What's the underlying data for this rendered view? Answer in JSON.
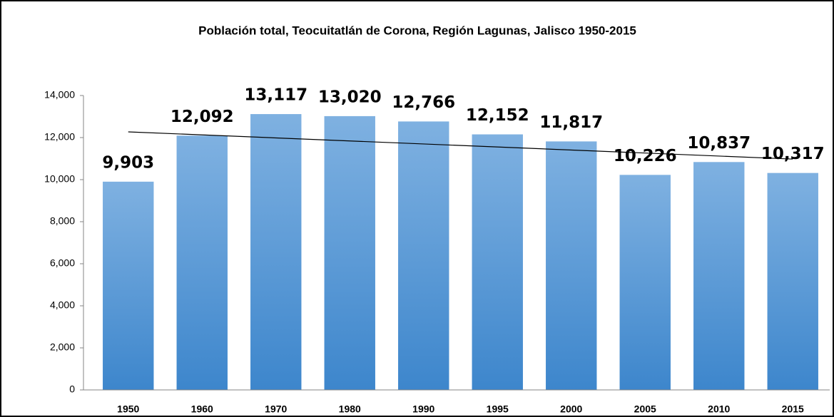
{
  "chart_data": {
    "type": "bar",
    "title": "Población total, Teocuitatlán de Corona, Región Lagunas, Jalisco 1950-2015",
    "categories": [
      "1950",
      "1960",
      "1970",
      "1980",
      "1990",
      "1995",
      "2000",
      "2005",
      "2010",
      "2015"
    ],
    "values": [
      9903,
      12092,
      13117,
      13020,
      12766,
      12152,
      11817,
      10226,
      10837,
      10317
    ],
    "value_labels": [
      "9,903",
      "12,092",
      "13,117",
      "13,020",
      "12,766",
      "12,152",
      "11,817",
      "10,226",
      "10,837",
      "10,317"
    ],
    "color": "#5b9bd5",
    "trendline": "linear",
    "ylim": [
      0,
      14000
    ],
    "yticks": [
      0,
      {
        "value": 2000,
        "label": "2,000"
      },
      {
        "value": 4000,
        "label": "4,000"
      },
      {
        "value": 6000,
        "label": "6,000"
      },
      {
        "value": 8000,
        "label": "8,000"
      },
      {
        "value": 10000,
        "label": "10,000"
      },
      {
        "value": 12000,
        "label": "12,000"
      },
      {
        "value": 14000,
        "label": "14,000"
      }
    ],
    "grid": false
  }
}
